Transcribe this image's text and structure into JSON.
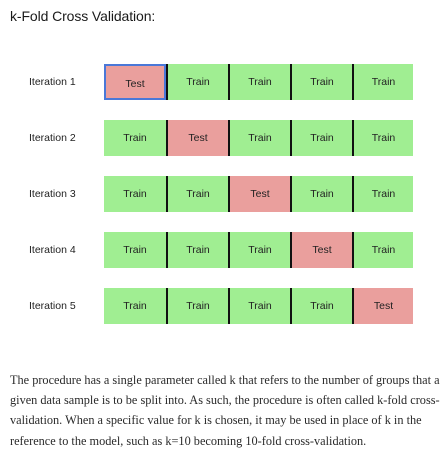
{
  "title": "k-Fold Cross Validation:",
  "diagram": {
    "train_color": "#a0ee92",
    "test_color": "#ea9f9d",
    "iterations": [
      {
        "label": "Iteration 1",
        "folds": [
          "Test",
          "Train",
          "Train",
          "Train",
          "Train"
        ]
      },
      {
        "label": "Iteration 2",
        "folds": [
          "Train",
          "Test",
          "Train",
          "Train",
          "Train"
        ]
      },
      {
        "label": "Iteration 3",
        "folds": [
          "Train",
          "Train",
          "Test",
          "Train",
          "Train"
        ]
      },
      {
        "label": "Iteration 4",
        "folds": [
          "Train",
          "Train",
          "Train",
          "Test",
          "Train"
        ]
      },
      {
        "label": "Iteration 5",
        "folds": [
          "Train",
          "Train",
          "Train",
          "Train",
          "Test"
        ]
      }
    ]
  },
  "paragraph": "The procedure has a single parameter called k that refers to the number of groups that a given data sample is to be split into. As such, the procedure is often called k-fold cross-validation. When a specific value for k is chosen, it may be used in place of k in the reference to the model, such as k=10 becoming 10-fold cross-validation."
}
